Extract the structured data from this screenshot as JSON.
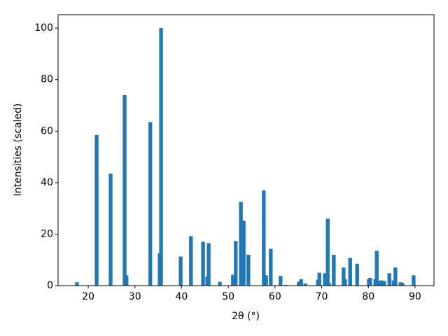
{
  "chart_data": {
    "type": "bar",
    "xlabel": "2θ (°)",
    "ylabel": "Intensities (scaled)",
    "x": [
      17.6,
      21.8,
      24.8,
      27.8,
      28.2,
      33.3,
      35.3,
      35.6,
      39.8,
      42.0,
      44.6,
      45.5,
      45.8,
      48.2,
      51.0,
      51.6,
      52.7,
      53.3,
      54.3,
      57.6,
      58.1,
      59.1,
      61.2,
      62.3,
      65.1,
      65.6,
      66.5,
      69.2,
      69.5,
      70.7,
      71.3,
      71.6,
      72.6,
      74.7,
      75.0,
      76.1,
      77.6,
      80.1,
      80.4,
      81.5,
      81.8,
      82.4,
      82.8,
      83.4,
      84.5,
      85.4,
      85.8,
      86.9,
      87.3,
      89.7
    ],
    "values": [
      1.3,
      58.5,
      43.5,
      74,
      4,
      63.5,
      12.5,
      100,
      11.3,
      19.2,
      17,
      3.5,
      16.5,
      1.5,
      4.2,
      17.3,
      32.5,
      25.2,
      12,
      37,
      4,
      14.3,
      3.8,
      0.3,
      1.5,
      2.5,
      0.8,
      2.3,
      5,
      4.8,
      26,
      1,
      12,
      7,
      2.5,
      10.8,
      8.5,
      2.5,
      3,
      2.5,
      13.5,
      1.8,
      2,
      1.8,
      4.8,
      2,
      7,
      1.3,
      1,
      4
    ],
    "color": "#1f77b4",
    "xlim": [
      13.55,
      94.06
    ],
    "xticks": [
      20,
      30,
      40,
      50,
      60,
      70,
      80,
      90
    ],
    "ylim": [
      0,
      105.2
    ],
    "yticks": [
      0,
      20,
      40,
      60,
      80,
      100
    ]
  }
}
